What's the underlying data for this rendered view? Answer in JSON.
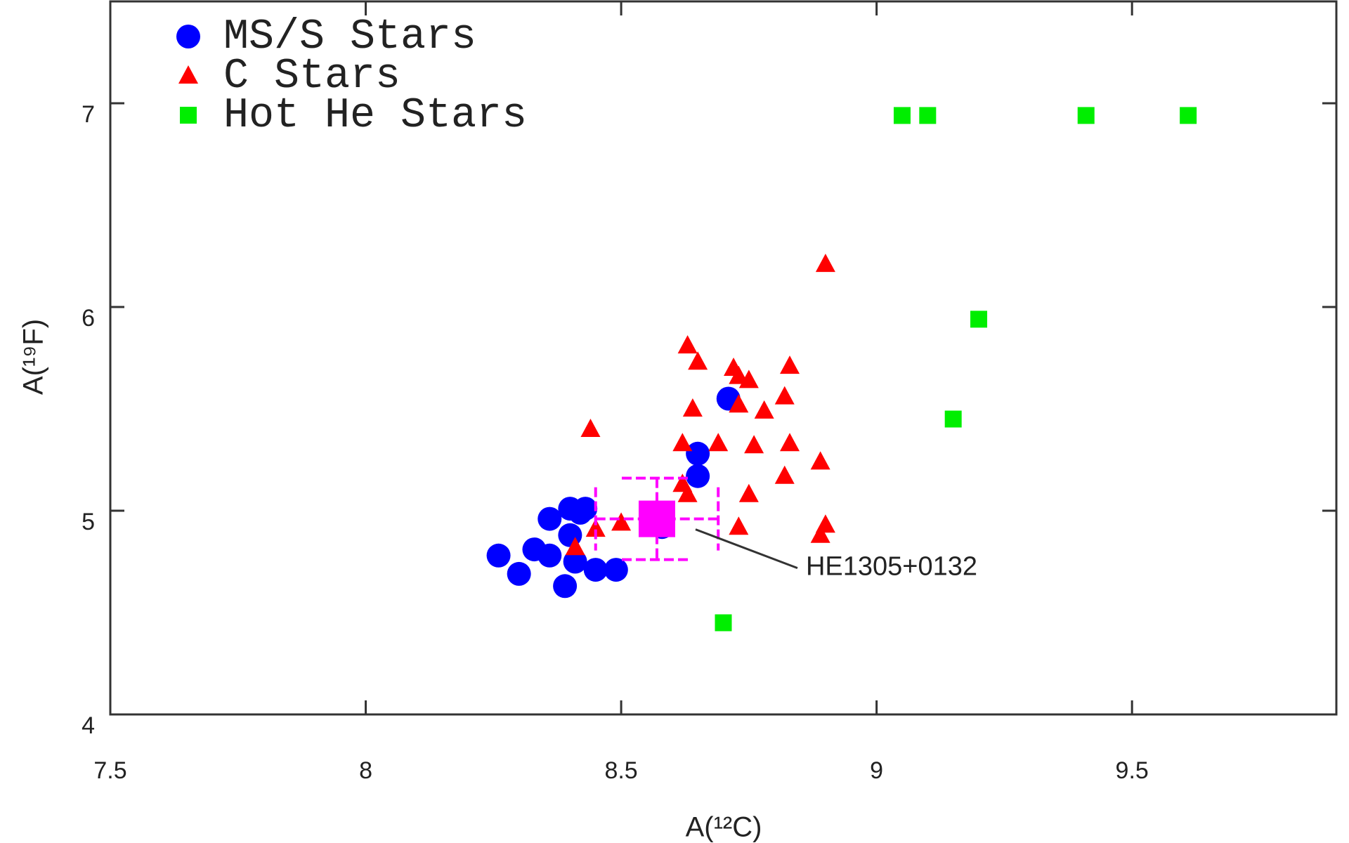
{
  "chart_data": {
    "type": "scatter",
    "x_label": "A(¹²C)",
    "y_label": "A(¹⁹F)",
    "xlim": [
      7.5,
      9.9
    ],
    "ylim": [
      4,
      7.5
    ],
    "xticks": [
      7.5,
      8,
      8.5,
      9,
      9.5
    ],
    "yticks": [
      4,
      5,
      6,
      7
    ],
    "legend": "upper left",
    "series": [
      {
        "name": "MS/S Stars",
        "color": "#0000ff",
        "marker": "circle",
        "x": [
          8.26,
          8.3,
          8.33,
          8.36,
          8.39,
          8.4,
          8.42,
          8.43,
          8.36,
          8.4,
          8.41,
          8.45,
          8.49,
          8.58,
          8.65,
          8.65,
          8.71
        ],
        "values": [
          4.78,
          4.69,
          4.81,
          4.96,
          4.63,
          5.01,
          4.99,
          5.01,
          4.78,
          4.88,
          4.75,
          4.71,
          4.71,
          4.92,
          5.17,
          5.28,
          5.55
        ]
      },
      {
        "name": "C Stars",
        "color": "#ff0000",
        "marker": "triangle",
        "x": [
          8.44,
          8.41,
          8.45,
          8.5,
          8.62,
          8.63,
          8.63,
          8.65,
          8.64,
          8.62,
          8.69,
          8.72,
          8.73,
          8.75,
          8.73,
          8.76,
          8.78,
          8.83,
          8.82,
          8.83,
          8.82,
          8.89,
          8.75,
          8.73,
          8.89,
          8.9,
          8.9
        ],
        "values": [
          5.4,
          4.82,
          4.91,
          4.94,
          5.13,
          5.08,
          5.81,
          5.73,
          5.5,
          5.33,
          5.33,
          5.7,
          5.66,
          5.64,
          5.52,
          5.32,
          5.49,
          5.71,
          5.56,
          5.33,
          5.17,
          5.24,
          5.08,
          4.92,
          4.88,
          4.93,
          6.21
        ]
      },
      {
        "name": "Hot He Stars",
        "color": "#00ee00",
        "marker": "square",
        "x": [
          9.05,
          9.1,
          9.41,
          9.61,
          9.2,
          9.15,
          8.7
        ],
        "values": [
          6.94,
          6.94,
          6.94,
          6.94,
          5.94,
          5.45,
          4.45
        ]
      }
    ],
    "annotation": {
      "text": "HE1305+0132",
      "x": 8.57,
      "y": 4.96,
      "xerr": 0.12,
      "yerr": 0.2,
      "color": "#ff00ff"
    }
  }
}
